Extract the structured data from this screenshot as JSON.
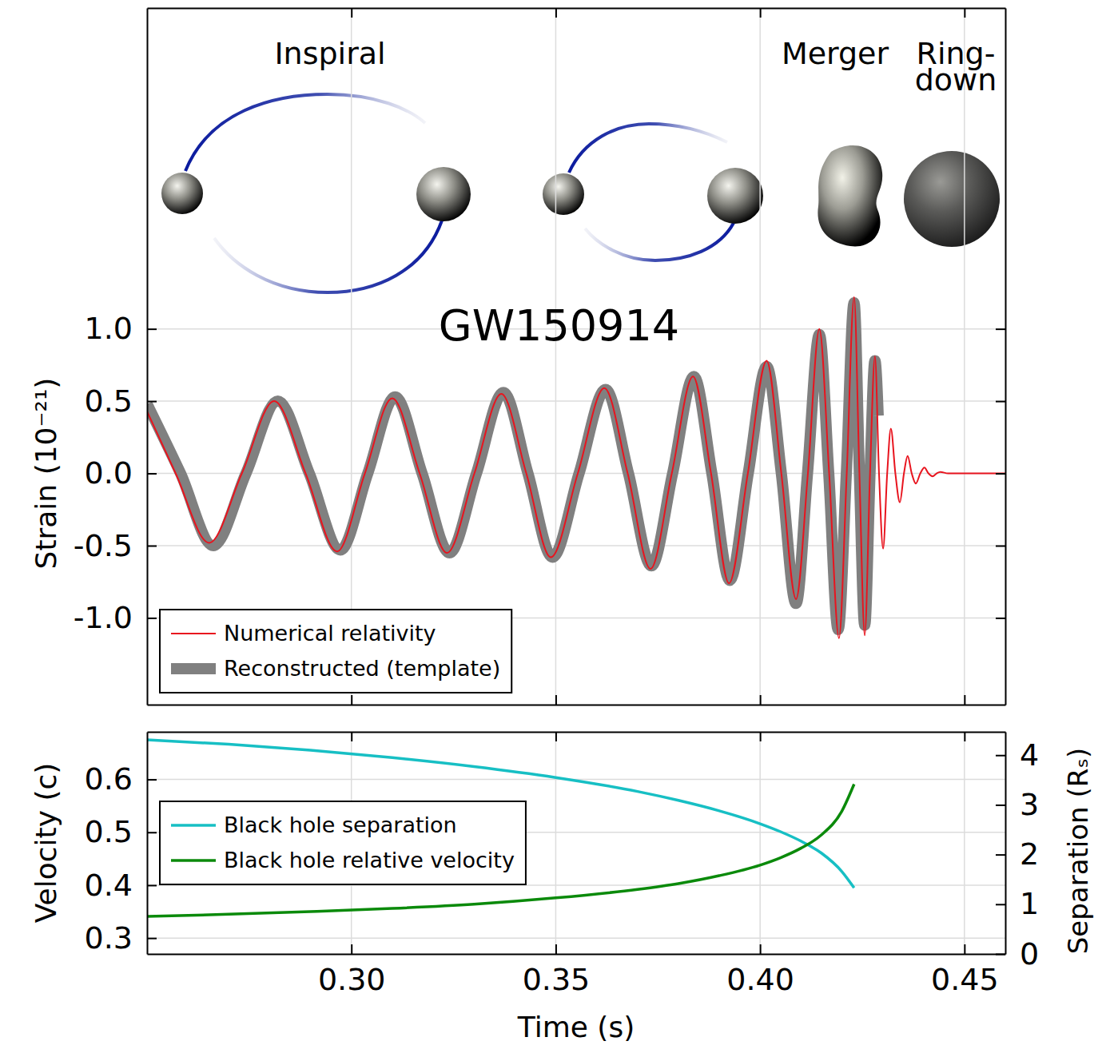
{
  "chart_data": [
    {
      "type": "line",
      "title": "GW150914",
      "annotations": [
        "Inspiral",
        "Merger",
        "Ring-down"
      ],
      "ylabel": "Strain (10⁻²¹)",
      "xlim": [
        0.25,
        0.46
      ],
      "ylim": [
        -1.6,
        3.22
      ],
      "xticks": [
        {
          "value": 0.3,
          "label": "0.30"
        },
        0.35,
        {
          "value": 0.4,
          "label": "0.40"
        },
        0.45
      ],
      "yticks": [
        {
          "value": -1,
          "label": "-1.0"
        },
        -0.5,
        {
          "value": 0,
          "label": "0.0"
        },
        0.5,
        {
          "value": 1,
          "label": "1.0"
        }
      ],
      "grid": true,
      "tick_labels": "y",
      "legend": "lower left",
      "series": [
        {
          "name": "Numerical relativity",
          "color": "#e8141e",
          "line_style": "solid",
          "x": [
            0.25,
            0.257,
            0.2652,
            0.2732,
            0.2811,
            0.2888,
            0.2965,
            0.3033,
            0.31,
            0.3167,
            0.3234,
            0.3301,
            0.3367,
            0.3428,
            0.3488,
            0.3554,
            0.3619,
            0.3676,
            0.3732,
            0.3784,
            0.3836,
            0.388,
            0.3924,
            0.397,
            0.4016,
            0.4052,
            0.4088,
            0.4117,
            0.4145,
            0.4169,
            0.4193,
            0.4212,
            0.423,
            0.4243,
            0.4256,
            0.4269,
            0.4281,
            0.4291,
            0.4301,
            0.4311,
            0.432,
            0.4331,
            0.4342,
            0.4352,
            0.4361,
            0.4371,
            0.4381,
            0.4392,
            0.4402,
            0.4412,
            0.4422,
            0.4432,
            0.4441,
            0.446,
            0.46
          ],
          "values": [
            0.43,
            0,
            -0.48,
            0,
            0.5,
            0,
            -0.54,
            0,
            0.52,
            0,
            -0.55,
            0,
            0.55,
            0,
            -0.58,
            0,
            0.59,
            0,
            -0.66,
            0,
            0.67,
            0,
            -0.76,
            0,
            0.78,
            0,
            -0.87,
            0,
            1.0,
            0,
            -1.14,
            0,
            1.22,
            0,
            -1.12,
            0,
            0.81,
            0,
            -0.52,
            0,
            0.31,
            0,
            -0.2,
            0,
            0.12,
            0,
            -0.07,
            0,
            0.04,
            0,
            -0.02,
            0,
            0.01,
            0,
            0
          ]
        },
        {
          "name": "Reconstructed (template)",
          "color": "#808080",
          "line_style": "band",
          "x": [
            0.25,
            0.2582,
            0.2662,
            0.2742,
            0.282,
            0.2897,
            0.2973,
            0.304,
            0.3107,
            0.3173,
            0.324,
            0.3306,
            0.3372,
            0.3432,
            0.3492,
            0.3557,
            0.3622,
            0.3678,
            0.3734,
            0.3786,
            0.3838,
            0.3882,
            0.3926,
            0.3971,
            0.4016,
            0.4052,
            0.4088,
            0.4116,
            0.4145,
            0.4168,
            0.4191,
            0.4211,
            0.423,
            0.4243,
            0.4256,
            0.4269,
            0.4281,
            0.4289
          ],
          "values": [
            0.48,
            0,
            -0.5,
            0,
            0.5,
            0,
            -0.53,
            0,
            0.53,
            0,
            -0.55,
            0,
            0.56,
            0,
            -0.58,
            0,
            0.58,
            0,
            -0.64,
            0,
            0.67,
            0,
            -0.74,
            0,
            0.74,
            0,
            -0.9,
            0,
            0.96,
            0,
            -1.08,
            0,
            1.18,
            0,
            -1.05,
            0,
            0.78,
            0.4
          ]
        }
      ]
    },
    {
      "type": "line",
      "xlabel": "Time (s)",
      "ylabel": "Velocity (c)",
      "y2label": "Separation (Rₛ)",
      "xlim": [
        0.25,
        0.46
      ],
      "ylim": [
        0.27,
        0.69
      ],
      "y2lim": [
        0,
        4.47
      ],
      "xticks": [
        {
          "value": 0.3,
          "label": "0.30"
        },
        0.35,
        {
          "value": 0.4,
          "label": "0.40"
        },
        0.45
      ],
      "yticks": [
        0.3,
        0.4,
        0.5,
        0.6
      ],
      "y2ticks": [
        0,
        1,
        2,
        3,
        4
      ],
      "grid": true,
      "legend": "left",
      "series": [
        {
          "name": "Black hole separation",
          "color": "#17bfc4",
          "axis": "y2",
          "line_style": "solid",
          "x": [
            0.25,
            0.27,
            0.29,
            0.31,
            0.33,
            0.35,
            0.37,
            0.38,
            0.39,
            0.4,
            0.405,
            0.41,
            0.415,
            0.42,
            0.423
          ],
          "values": [
            4.31,
            4.22,
            4.1,
            3.95,
            3.77,
            3.55,
            3.27,
            3.09,
            2.88,
            2.62,
            2.46,
            2.27,
            2.03,
            1.66,
            1.33
          ]
        },
        {
          "name": "Black hole relative velocity",
          "color": "#0b8a0b",
          "axis": "y",
          "line_style": "solid",
          "x": [
            0.25,
            0.27,
            0.29,
            0.31,
            0.33,
            0.35,
            0.37,
            0.38,
            0.39,
            0.4,
            0.405,
            0.41,
            0.415,
            0.42,
            0.423
          ],
          "values": [
            0.341,
            0.345,
            0.35,
            0.356,
            0.364,
            0.376,
            0.392,
            0.403,
            0.418,
            0.438,
            0.452,
            0.47,
            0.495,
            0.54,
            0.591
          ]
        }
      ]
    }
  ]
}
